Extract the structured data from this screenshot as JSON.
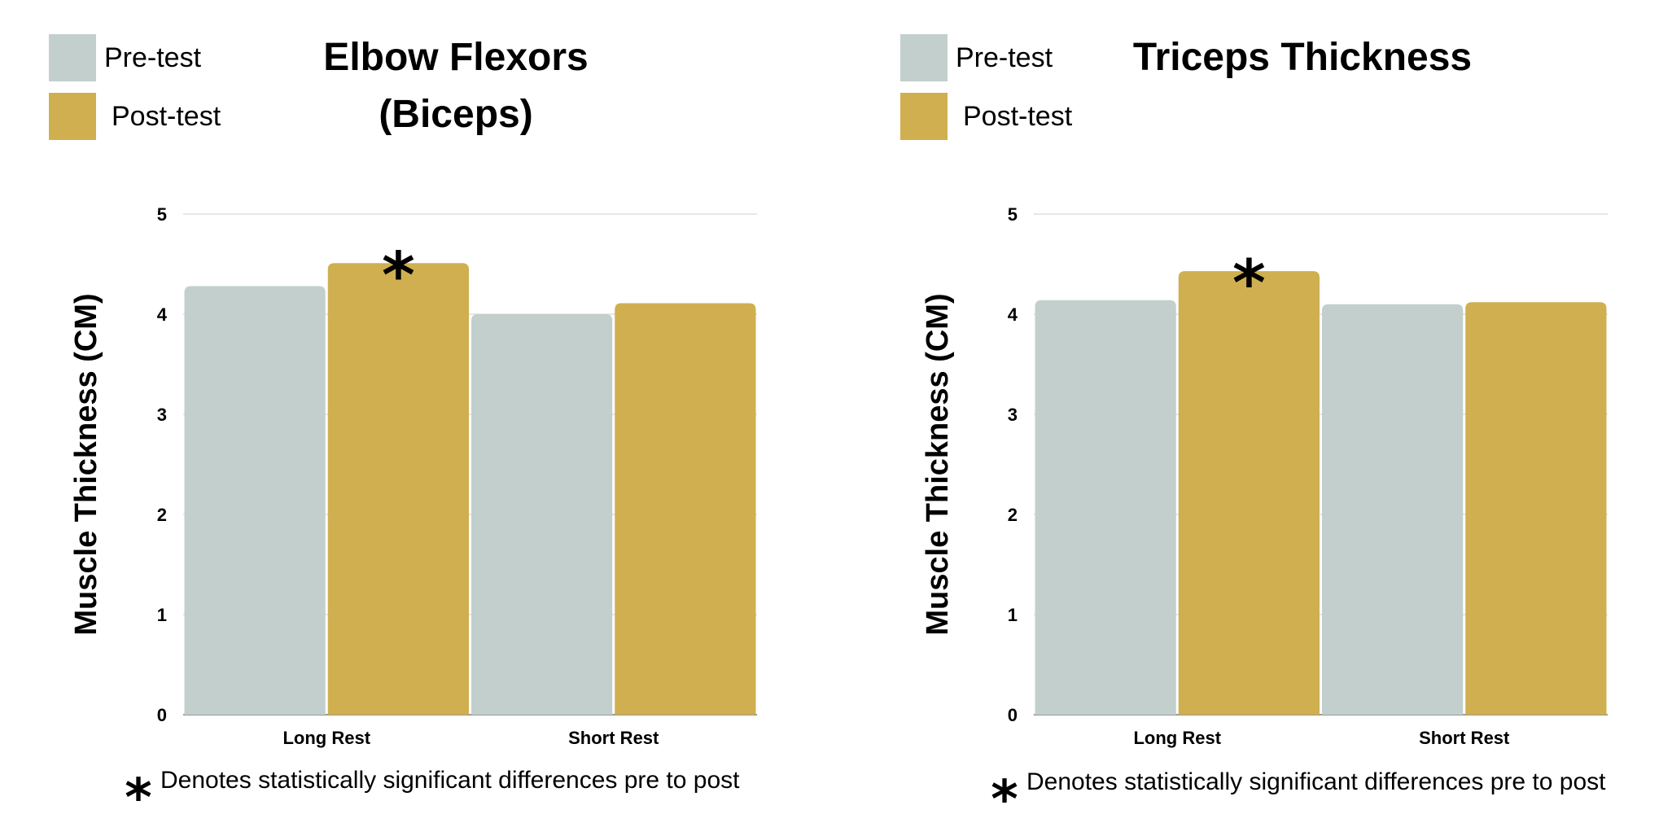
{
  "chart_data": [
    {
      "type": "bar",
      "title": "Elbow Flexors (Biceps)",
      "title_lines": [
        "Elbow Flexors",
        "(Biceps)"
      ],
      "ylabel": "Muscle Thickness (CM)",
      "xlabel": "",
      "ylim": [
        0,
        5
      ],
      "yticks": [
        "0",
        "1",
        "2",
        "3",
        "4",
        "5"
      ],
      "categories": [
        "Long Rest",
        "Short Rest"
      ],
      "series": [
        {
          "name": "Pre-test",
          "color": "#c2cfcd",
          "values": [
            4.28,
            4.0
          ]
        },
        {
          "name": "Post-test",
          "color": "#cfaf4f",
          "values": [
            4.51,
            4.11
          ]
        }
      ],
      "significance": {
        "marker": "*",
        "category": "Long Rest",
        "series": "Post-test"
      },
      "grid": true,
      "legend_position": "top-left",
      "note": {
        "marker": "*",
        "text": "Denotes statistically significant differences pre to post"
      }
    },
    {
      "type": "bar",
      "title": "Triceps Thickness",
      "title_lines": [
        "Triceps Thickness"
      ],
      "ylabel": "Muscle Thickness (CM)",
      "xlabel": "",
      "ylim": [
        0,
        5
      ],
      "yticks": [
        "0",
        "1",
        "2",
        "3",
        "4",
        "5"
      ],
      "categories": [
        "Long Rest",
        "Short Rest"
      ],
      "series": [
        {
          "name": "Pre-test",
          "color": "#c2cfcd",
          "values": [
            4.14,
            4.1
          ]
        },
        {
          "name": "Post-test",
          "color": "#cfaf4f",
          "values": [
            4.43,
            4.12
          ]
        }
      ],
      "significance": {
        "marker": "*",
        "category": "Long Rest",
        "series": "Post-test"
      },
      "grid": true,
      "legend_position": "top-left",
      "note": {
        "marker": "*",
        "text": "Denotes statistically significant differences pre to post"
      }
    }
  ]
}
